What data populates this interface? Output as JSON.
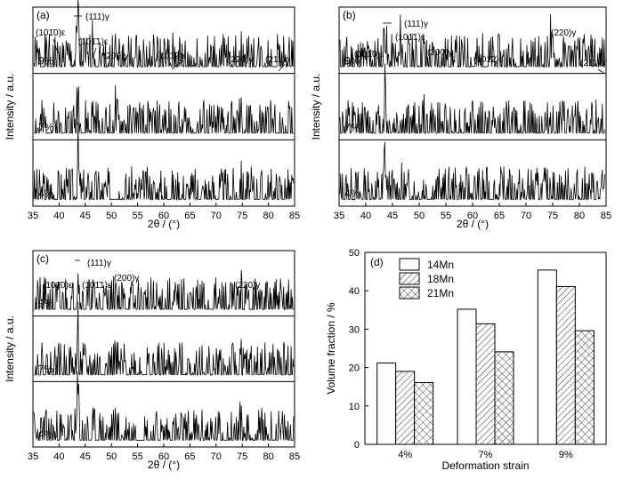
{
  "chart_data": [
    {
      "type": "line",
      "panel_label": "(a)",
      "xlabel": "2θ / (°)",
      "ylabel": "Intensity / a.u.",
      "xlim": [
        35,
        85
      ],
      "xticks": [
        35,
        40,
        45,
        50,
        55,
        60,
        65,
        70,
        75,
        80,
        85
      ],
      "series": [
        {
          "name": "9%",
          "peaks": [
            [
              41.2,
              0.18
            ],
            [
              43.6,
              1.0
            ],
            [
              46.5,
              0.55
            ],
            [
              50.7,
              0.28
            ],
            [
              62.0,
              0.08
            ],
            [
              74.6,
              0.22
            ],
            [
              82.9,
              0.15
            ]
          ]
        },
        {
          "name": "7%",
          "peaks": [
            [
              41.2,
              0.12
            ],
            [
              43.6,
              1.0
            ],
            [
              46.5,
              0.28
            ],
            [
              50.7,
              0.42
            ],
            [
              62.0,
              0.03
            ],
            [
              74.6,
              0.22
            ],
            [
              82.9,
              0.05
            ]
          ]
        },
        {
          "name": "4%",
          "peaks": [
            [
              41.2,
              0.06
            ],
            [
              43.6,
              1.0
            ],
            [
              46.5,
              0.18
            ],
            [
              50.7,
              0.38
            ],
            [
              74.6,
              0.36
            ]
          ]
        }
      ],
      "annotations": [
        "(111)γ",
        "(101̄0)ε",
        "(101̄1)ε",
        "(200)γ",
        "(101̄2)ε",
        "(220)γ",
        "(211)α'"
      ]
    },
    {
      "type": "line",
      "panel_label": "(b)",
      "xlabel": "2θ / (°)",
      "ylabel": "Intensity / a.u.",
      "xlim": [
        35,
        85
      ],
      "xticks": [
        35,
        40,
        45,
        50,
        55,
        60,
        65,
        70,
        75,
        80,
        85
      ],
      "series": [
        {
          "name": "9%",
          "peaks": [
            [
              41.2,
              0.14
            ],
            [
              43.6,
              1.0
            ],
            [
              46.6,
              0.62
            ],
            [
              50.8,
              0.28
            ],
            [
              62.0,
              0.06
            ],
            [
              74.6,
              0.58
            ],
            [
              83.0,
              0.1
            ]
          ]
        },
        {
          "name": "7%",
          "peaks": [
            [
              41.2,
              0.06
            ],
            [
              43.6,
              1.0
            ],
            [
              46.6,
              0.3
            ],
            [
              50.8,
              0.18
            ],
            [
              62.0,
              0.03
            ],
            [
              74.6,
              0.3
            ],
            [
              83.0,
              0.04
            ]
          ]
        },
        {
          "name": "4%",
          "peaks": [
            [
              43.6,
              1.0
            ],
            [
              46.6,
              0.12
            ],
            [
              50.8,
              0.22
            ],
            [
              62.0,
              0.03
            ],
            [
              74.6,
              0.5
            ]
          ]
        }
      ],
      "annotations": [
        "(111)γ",
        "(101̄0)ε",
        "(101̄1)ε",
        "(200)γ",
        "(101̄2)ε",
        "(220)γ",
        "(211)α'"
      ]
    },
    {
      "type": "line",
      "panel_label": "(c)",
      "xlabel": "2θ / (°)",
      "ylabel": "Intensity / a.u.",
      "xlim": [
        35,
        85
      ],
      "xticks": [
        35,
        40,
        45,
        50,
        55,
        60,
        65,
        70,
        75,
        80,
        85
      ],
      "series": [
        {
          "name": "9%",
          "peaks": [
            [
              41.2,
              0.12
            ],
            [
              43.6,
              1.0
            ],
            [
              46.8,
              0.2
            ],
            [
              50.8,
              0.55
            ],
            [
              74.6,
              0.4
            ]
          ]
        },
        {
          "name": "7%",
          "peaks": [
            [
              41.2,
              0.05
            ],
            [
              43.6,
              1.0
            ],
            [
              46.8,
              0.08
            ],
            [
              50.8,
              0.3
            ],
            [
              74.6,
              0.25
            ]
          ]
        },
        {
          "name": "4%",
          "peaks": [
            [
              43.6,
              1.0
            ],
            [
              46.8,
              0.05
            ],
            [
              50.8,
              0.3
            ],
            [
              74.6,
              0.2
            ]
          ]
        }
      ],
      "annotations": [
        "(111)γ",
        "(101̄0)ε",
        "(101̄1)ε",
        "(200)γ",
        "(220)γ"
      ]
    },
    {
      "type": "bar",
      "panel_label": "(d)",
      "categories": [
        "4%",
        "7%",
        "9%"
      ],
      "series": [
        {
          "name": "14Mn",
          "values": [
            21.2,
            35.2,
            45.4
          ]
        },
        {
          "name": "18Mn",
          "values": [
            19.0,
            31.4,
            41.1
          ]
        },
        {
          "name": "21Mn",
          "values": [
            16.1,
            24.1,
            29.6
          ]
        }
      ],
      "xlabel": "Deformation strain",
      "ylabel": "Volume fraction / %",
      "ylim": [
        0,
        50
      ],
      "yticks": [
        0,
        10,
        20,
        30,
        40,
        50
      ],
      "legend_position": "top-left"
    }
  ]
}
